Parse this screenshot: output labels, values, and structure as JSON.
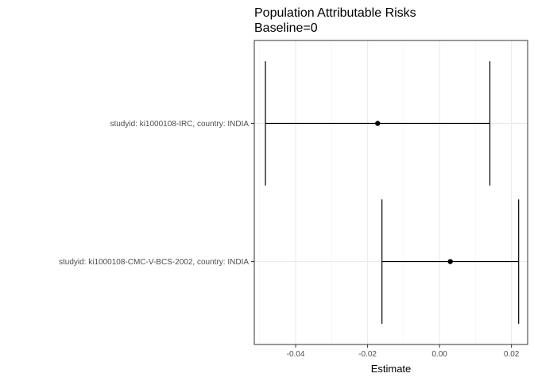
{
  "chart_data": {
    "type": "forest",
    "title": "Population Attributable Risks",
    "subtitle": "Baseline=0",
    "xlabel": "Estimate",
    "ylabel": "",
    "xlim": [
      -0.0515,
      0.0245
    ],
    "x_ticks": [
      -0.04,
      -0.02,
      0.0,
      0.02
    ],
    "x_tick_labels": [
      "-0.04",
      "-0.02",
      "0.00",
      "0.02"
    ],
    "grid": true,
    "categories": [
      "studyid: ki1000108-IRC, country: INDIA",
      "studyid: ki1000108-CMC-V-BCS-2002, country: INDIA"
    ],
    "points": [
      {
        "label": "studyid: ki1000108-IRC, country: INDIA",
        "estimate": -0.0172,
        "ci_lower": -0.0484,
        "ci_upper": 0.014
      },
      {
        "label": "studyid: ki1000108-CMC-V-BCS-2002, country: INDIA",
        "estimate": 0.003,
        "ci_lower": -0.016,
        "ci_upper": 0.022
      }
    ]
  }
}
